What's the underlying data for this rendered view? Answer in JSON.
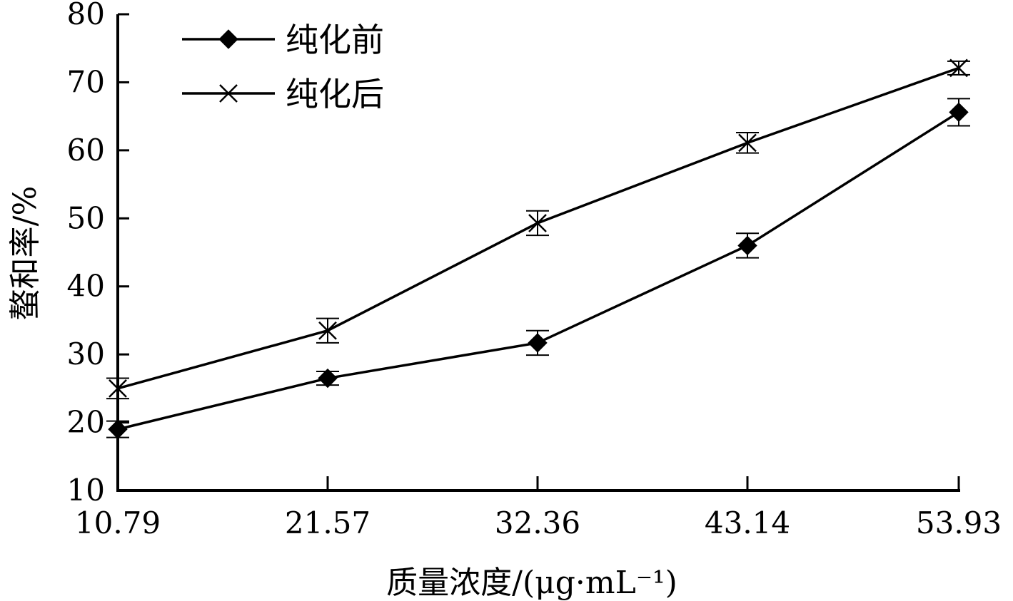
{
  "chart_data": {
    "type": "line",
    "xlabel": "质量浓度/(μg·mL⁻¹)",
    "ylabel": "螯和率/%",
    "categories": [
      "10.79",
      "21.57",
      "32.36",
      "43.14",
      "53.93"
    ],
    "ylim": [
      10,
      80
    ],
    "yticks": [
      10,
      20,
      30,
      40,
      50,
      60,
      70,
      80
    ],
    "grid": false,
    "legend_position": "top-left",
    "series": [
      {
        "name": "纯化前",
        "marker": "diamond",
        "values": [
          19.0,
          26.5,
          31.7,
          46.0,
          65.6
        ],
        "errors": [
          1.2,
          1.0,
          1.8,
          1.8,
          2.0
        ]
      },
      {
        "name": "纯化后",
        "marker": "x",
        "values": [
          25.0,
          33.5,
          49.3,
          61.1,
          72.1
        ],
        "errors": [
          1.5,
          1.8,
          1.8,
          1.5,
          1.0
        ]
      }
    ]
  }
}
